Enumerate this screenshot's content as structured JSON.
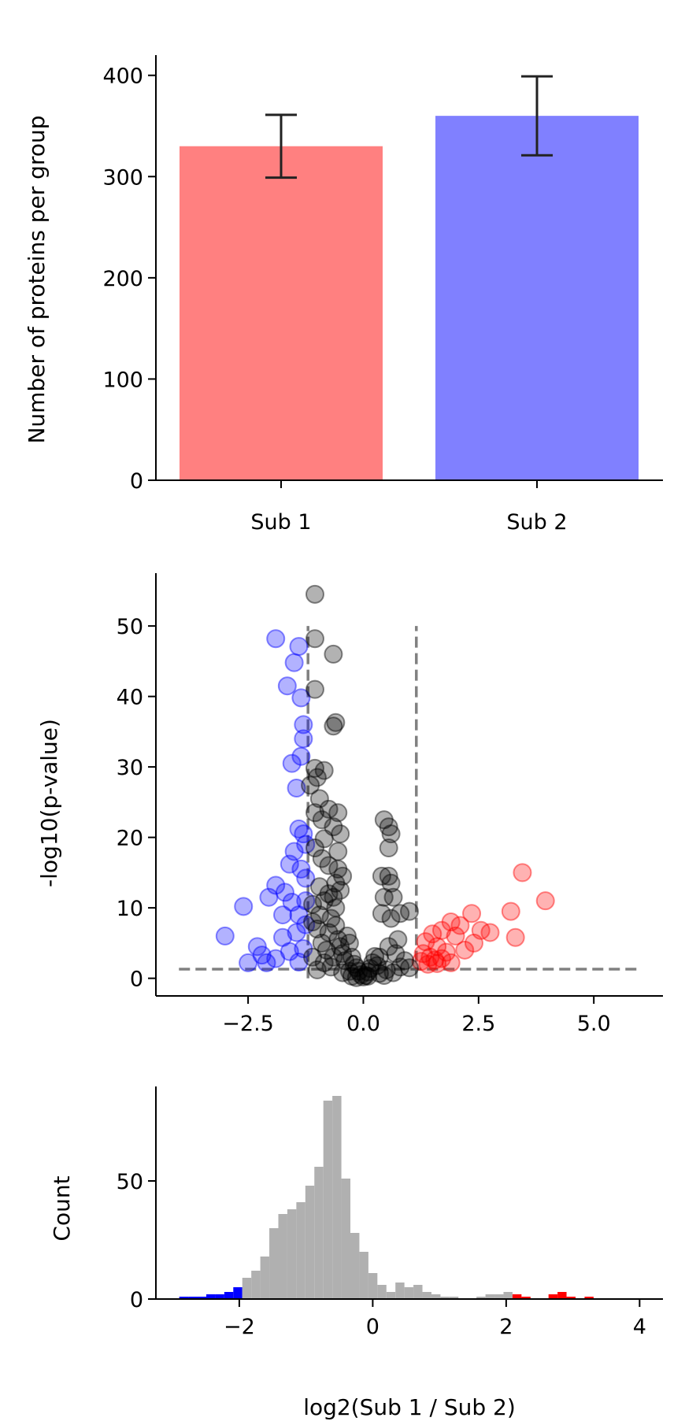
{
  "chart_data": [
    {
      "type": "bar",
      "ylabel": "Number of proteins per group",
      "categories": [
        "Sub 1",
        "Sub 2"
      ],
      "values": [
        330,
        360
      ],
      "error": [
        31,
        39
      ],
      "colors": [
        "#ff8080",
        "#8080ff"
      ],
      "ylim": [
        0,
        420
      ],
      "yticks": [
        0,
        100,
        200,
        300,
        400
      ],
      "grid": false
    },
    {
      "type": "scatter",
      "xlabel": "",
      "ylabel": "-log10(p-value)",
      "xlim": [
        -4.5,
        6.5
      ],
      "ylim": [
        -2.5,
        57.5
      ],
      "xticks": [
        -2.5,
        0.0,
        2.5,
        5.0
      ],
      "xtick_labels": [
        "−2.5",
        "0.0",
        "2.5",
        "5.0"
      ],
      "yticks": [
        0,
        10,
        20,
        30,
        40,
        50
      ],
      "thresholds": {
        "fc_low": -1.2,
        "fc_high": 1.15,
        "p": 1.3,
        "x_span": [
          -4,
          6
        ],
        "y_top": 50
      },
      "colors": {
        "down": "#0000ff",
        "up": "#ff0000",
        "ns": "#000000",
        "threshold": "#808080"
      },
      "series": [
        {
          "color": "#0000ff",
          "points": [
            [
              -1.9,
              48.2
            ],
            [
              -1.4,
              47.1
            ],
            [
              -1.5,
              44.8
            ],
            [
              -1.65,
              41.5
            ],
            [
              -1.35,
              39.8
            ],
            [
              -1.3,
              36.0
            ],
            [
              -1.3,
              34.0
            ],
            [
              -1.55,
              30.5
            ],
            [
              -1.35,
              31.5
            ],
            [
              -1.45,
              27.0
            ],
            [
              -1.4,
              21.2
            ],
            [
              -1.3,
              20.5
            ],
            [
              -1.25,
              19.0
            ],
            [
              -1.5,
              18.0
            ],
            [
              -1.35,
              15.5
            ],
            [
              -1.6,
              16.2
            ],
            [
              -1.25,
              14.2
            ],
            [
              -1.9,
              13.2
            ],
            [
              -2.05,
              11.5
            ],
            [
              -1.7,
              12.2
            ],
            [
              -1.55,
              10.8
            ],
            [
              -1.25,
              11.0
            ],
            [
              -1.4,
              9.0
            ],
            [
              -1.75,
              9.0
            ],
            [
              -2.6,
              10.2
            ],
            [
              -3.0,
              6.0
            ],
            [
              -2.3,
              4.5
            ],
            [
              -2.2,
              3.3
            ],
            [
              -1.9,
              2.8
            ],
            [
              -2.5,
              2.2
            ],
            [
              -1.6,
              3.8
            ],
            [
              -1.3,
              4.2
            ],
            [
              -1.45,
              6.5
            ],
            [
              -1.75,
              5.8
            ],
            [
              -1.25,
              7.6
            ],
            [
              -2.1,
              2.2
            ],
            [
              -1.4,
              2.3
            ]
          ]
        },
        {
          "color": "#ff0000",
          "points": [
            [
              3.45,
              15.0
            ],
            [
              3.95,
              11.0
            ],
            [
              3.2,
              9.5
            ],
            [
              2.35,
              9.2
            ],
            [
              1.9,
              8.0
            ],
            [
              2.1,
              7.5
            ],
            [
              2.55,
              6.8
            ],
            [
              2.75,
              6.5
            ],
            [
              1.7,
              6.8
            ],
            [
              2.0,
              6.0
            ],
            [
              1.5,
              6.3
            ],
            [
              3.3,
              5.8
            ],
            [
              1.35,
              5.2
            ],
            [
              1.6,
              4.5
            ],
            [
              2.4,
              5.0
            ],
            [
              2.2,
              4.0
            ],
            [
              1.8,
              3.7
            ],
            [
              1.3,
              3.5
            ],
            [
              1.45,
              3.0
            ],
            [
              1.55,
              2.6
            ],
            [
              1.7,
              2.8
            ],
            [
              1.9,
              2.2
            ],
            [
              1.25,
              2.4
            ],
            [
              1.6,
              2.1
            ],
            [
              1.4,
              2.0
            ]
          ]
        },
        {
          "color": "#000000",
          "points": [
            [
              -1.05,
              54.5
            ],
            [
              -1.05,
              48.2
            ],
            [
              -0.65,
              46.0
            ],
            [
              -1.05,
              41.0
            ],
            [
              -0.6,
              36.3
            ],
            [
              -0.65,
              35.8
            ],
            [
              -1.05,
              29.8
            ],
            [
              -1.0,
              28.5
            ],
            [
              -0.85,
              29.5
            ],
            [
              -1.15,
              27.4
            ],
            [
              -0.95,
              25.5
            ],
            [
              -1.05,
              23.5
            ],
            [
              -0.55,
              23.5
            ],
            [
              -0.75,
              24.0
            ],
            [
              -0.9,
              22.5
            ],
            [
              -0.65,
              21.5
            ],
            [
              -0.5,
              20.5
            ],
            [
              -0.85,
              19.8
            ],
            [
              -1.05,
              18.5
            ],
            [
              -0.55,
              18.0
            ],
            [
              -0.9,
              17.0
            ],
            [
              -0.75,
              16.0
            ],
            [
              -0.55,
              15.5
            ],
            [
              -0.45,
              14.5
            ],
            [
              -0.6,
              13.5
            ],
            [
              -0.5,
              12.5
            ],
            [
              -0.75,
              12.0
            ],
            [
              -0.95,
              13.0
            ],
            [
              -1.1,
              10.5
            ],
            [
              -0.85,
              11.0
            ],
            [
              -0.65,
              11.5
            ],
            [
              0.45,
              22.5
            ],
            [
              0.55,
              21.5
            ],
            [
              0.6,
              20.5
            ],
            [
              0.55,
              18.5
            ],
            [
              0.55,
              14.5
            ],
            [
              0.4,
              14.5
            ],
            [
              0.6,
              13.5
            ],
            [
              0.65,
              11.5
            ],
            [
              0.45,
              11.5
            ],
            [
              0.8,
              9.2
            ],
            [
              0.4,
              9.2
            ],
            [
              1.0,
              9.5
            ],
            [
              0.6,
              8.5
            ],
            [
              0.75,
              5.5
            ],
            [
              0.55,
              4.5
            ],
            [
              0.7,
              3.5
            ],
            [
              0.35,
              3.0
            ],
            [
              0.9,
              2.5
            ],
            [
              1.0,
              1.5
            ],
            [
              0.5,
              1.2
            ],
            [
              -1.1,
              3.0
            ],
            [
              -1.0,
              7.0
            ],
            [
              -0.9,
              5.0
            ],
            [
              -0.8,
              4.0
            ],
            [
              -0.75,
              6.5
            ],
            [
              -0.7,
              8.5
            ],
            [
              -0.6,
              7.5
            ],
            [
              -0.55,
              5.5
            ],
            [
              -0.5,
              4.5
            ],
            [
              -0.45,
              3.5
            ],
            [
              -0.4,
              2.5
            ],
            [
              -0.35,
              6.0
            ],
            [
              -0.3,
              5.0
            ],
            [
              -0.25,
              3.0
            ],
            [
              -0.2,
              2.0
            ],
            [
              -0.15,
              1.5
            ],
            [
              -0.1,
              1.0
            ],
            [
              -0.05,
              0.5
            ],
            [
              0.0,
              0.2
            ],
            [
              0.05,
              0.4
            ],
            [
              0.1,
              0.9
            ],
            [
              0.15,
              1.4
            ],
            [
              0.2,
              2.2
            ],
            [
              0.25,
              3.1
            ],
            [
              0.3,
              1.8
            ],
            [
              0.35,
              0.7
            ],
            [
              -0.6,
              10.0
            ],
            [
              -0.95,
              9.0
            ],
            [
              -1.1,
              8.0
            ],
            [
              -0.65,
              3.0
            ],
            [
              -0.85,
              2.2
            ],
            [
              -0.3,
              1.0
            ],
            [
              0.1,
              0.3
            ],
            [
              -0.15,
              0.1
            ],
            [
              -0.45,
              0.8
            ],
            [
              -0.7,
              1.6
            ],
            [
              -1.0,
              1.2
            ],
            [
              0.45,
              0.4
            ],
            [
              0.65,
              0.8
            ],
            [
              0.8,
              1.6
            ],
            [
              -0.25,
              0.3
            ]
          ]
        }
      ],
      "grid": false
    },
    {
      "type": "bar",
      "xlabel": "log2(Sub 1 / Sub 2)",
      "ylabel": "Count",
      "bin_start": -2.9,
      "bin_width": 0.135,
      "counts": [
        1,
        1,
        1,
        2,
        2,
        3,
        5,
        9,
        12,
        18,
        30,
        36,
        38,
        41,
        48,
        56,
        84,
        86,
        51,
        28,
        20,
        11,
        6,
        3,
        7,
        5,
        6,
        3,
        2,
        1,
        1,
        0,
        0,
        1,
        2,
        2,
        3,
        2,
        1,
        0,
        0,
        2,
        3,
        1,
        0,
        1
      ],
      "colors": {
        "default": "#b0b0b0",
        "down": "#0000ff",
        "up": "#ff0000"
      },
      "down_max": -2.0,
      "up_min": 2.1,
      "xlim": [
        -3.25,
        4.35
      ],
      "ylim": [
        0,
        90
      ],
      "xticks": [
        -2,
        0,
        2,
        4
      ],
      "xtick_labels": [
        "−2",
        "0",
        "2",
        "4"
      ],
      "yticks": [
        0,
        50
      ],
      "grid": false
    }
  ]
}
